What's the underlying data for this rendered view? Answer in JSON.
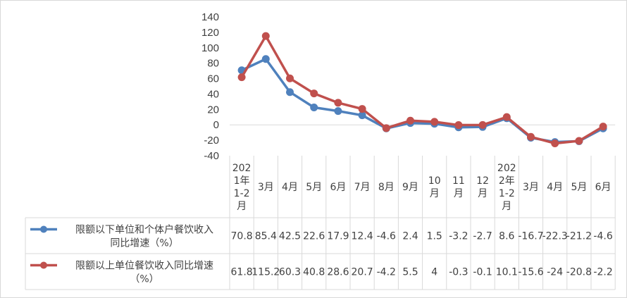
{
  "chart_data": {
    "type": "line",
    "title": "",
    "xlabel": "",
    "ylabel": "",
    "ylim": [
      -40,
      140
    ],
    "yticks": [
      140,
      120,
      100,
      80,
      60,
      40,
      20,
      0,
      -20,
      -40
    ],
    "grid": false,
    "legend": "table-left",
    "categories": [
      "2021年1-2月",
      "3月",
      "4月",
      "5月",
      "6月",
      "7月",
      "8月",
      "9月",
      "10月",
      "11月",
      "12月",
      "2022年1-2月",
      "3月",
      "4月",
      "5月",
      "6月"
    ],
    "category_lines": [
      [
        "202",
        "1年",
        "1-2",
        "月"
      ],
      [
        "3月"
      ],
      [
        "4月"
      ],
      [
        "5月"
      ],
      [
        "6月"
      ],
      [
        "7月"
      ],
      [
        "8月"
      ],
      [
        "9月"
      ],
      [
        "10",
        "月"
      ],
      [
        "11",
        "月"
      ],
      [
        "12",
        "月"
      ],
      [
        "202",
        "2年",
        "1-2",
        "月"
      ],
      [
        "3月"
      ],
      [
        "4月"
      ],
      [
        "5月"
      ],
      [
        "6月"
      ]
    ],
    "series": [
      {
        "name": "限额以下单位和个体户餐饮收入同比增速（%）",
        "name_lines": [
          "限额以下单位和个体户餐饮收入",
          "同比增速（%）"
        ],
        "color": "#4f81bd",
        "values": [
          70.8,
          85.4,
          42.5,
          22.6,
          17.9,
          12.4,
          -4.6,
          2.4,
          1.5,
          -3.2,
          -2.7,
          8.6,
          -16.7,
          -22.3,
          -21.2,
          -4.6
        ],
        "labels": [
          "70.8",
          "85.4",
          "42.5",
          "22.6",
          "17.9",
          "12.4",
          "-4.6",
          "2.4",
          "1.5",
          "-3.2",
          "-2.7",
          "8.6",
          "-16.7",
          "-22.3",
          "-21.2",
          "-4.6"
        ]
      },
      {
        "name": "限额以上单位餐饮收入同比增速（%）",
        "name_lines": [
          "限额以上单位餐饮收入同比增速",
          "（%）"
        ],
        "color": "#c0504d",
        "values": [
          61.8,
          115.2,
          60.3,
          40.8,
          28.6,
          20.7,
          -4.2,
          5.5,
          4,
          -0.3,
          -0.1,
          10.1,
          -15.6,
          -24,
          -20.8,
          -2.2
        ],
        "labels": [
          "61.8",
          "115.2",
          "60.3",
          "40.8",
          "28.6",
          "20.7",
          "-4.2",
          "5.5",
          "4",
          "-0.3",
          "-0.1",
          "10.1",
          "-15.6",
          "-24",
          "-20.8",
          "-2.2"
        ]
      }
    ]
  }
}
